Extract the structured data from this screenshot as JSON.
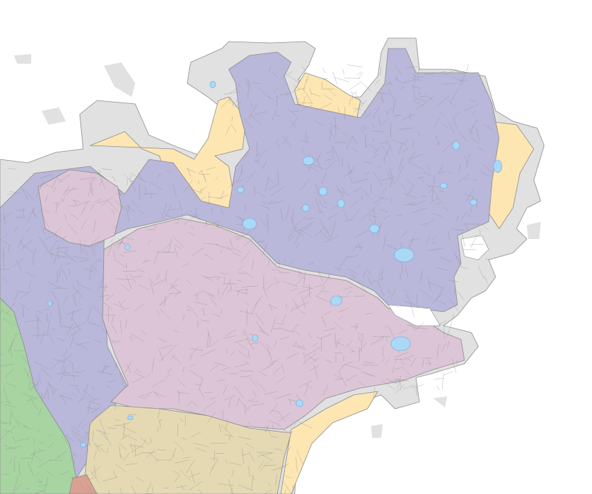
{
  "map": {
    "labels": [],
    "colors": {
      "background": "#ffffff",
      "land_outer": "#e1e1e1",
      "zone_lavender": "#b9b7da",
      "zone_pink": "#dcc5d6",
      "zone_sand": "#fde6b2",
      "zone_khaki": "#e4d9b2",
      "zone_green": "#a7d4a1",
      "zone_salmon": "#d9a192",
      "water": "#a9d9f7",
      "parcel_lines": "#8a8a8a"
    }
  }
}
